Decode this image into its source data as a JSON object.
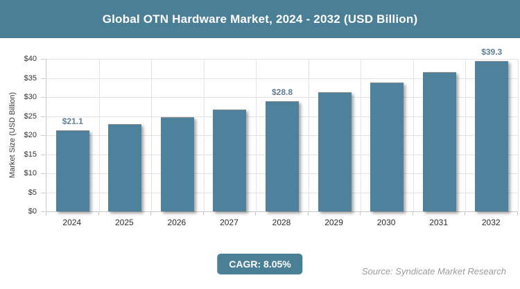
{
  "header": {
    "title": "Global OTN Hardware Market, 2024 - 2032 (USD Billion)"
  },
  "chart_data": {
    "type": "bar",
    "title": "Global OTN Hardware Market, 2024 - 2032 (USD Billion)",
    "categories": [
      "2024",
      "2025",
      "2026",
      "2027",
      "2028",
      "2029",
      "2030",
      "2031",
      "2032"
    ],
    "values": [
      21.1,
      22.8,
      24.6,
      26.6,
      28.8,
      31.1,
      33.6,
      36.3,
      39.3
    ],
    "bar_labels": [
      "$21.1",
      "",
      "",
      "",
      "$28.8",
      "",
      "",
      "",
      "$39.3"
    ],
    "xlabel": "",
    "ylabel": "Market Size (USD Billion)",
    "ylim": [
      0,
      40
    ],
    "ytick_step": 5,
    "yticks": [
      "$0",
      "$5",
      "$10",
      "$15",
      "$20",
      "$25",
      "$30",
      "$35",
      "$40"
    ],
    "grid": true,
    "legend": false
  },
  "footer": {
    "cagr_label": "CAGR: 8.05%",
    "source": "Source: Syndicate Market Research"
  },
  "colors": {
    "header_bg": "#4a7f96",
    "bar_fill": "#4d819c",
    "value_label": "#5f7e94",
    "badge_bg": "#4a7f96",
    "grid_line": "#e4e4e4",
    "axis_line": "#c8c8c8",
    "source_text": "#9b9b9b",
    "tick_text": "#303030"
  }
}
